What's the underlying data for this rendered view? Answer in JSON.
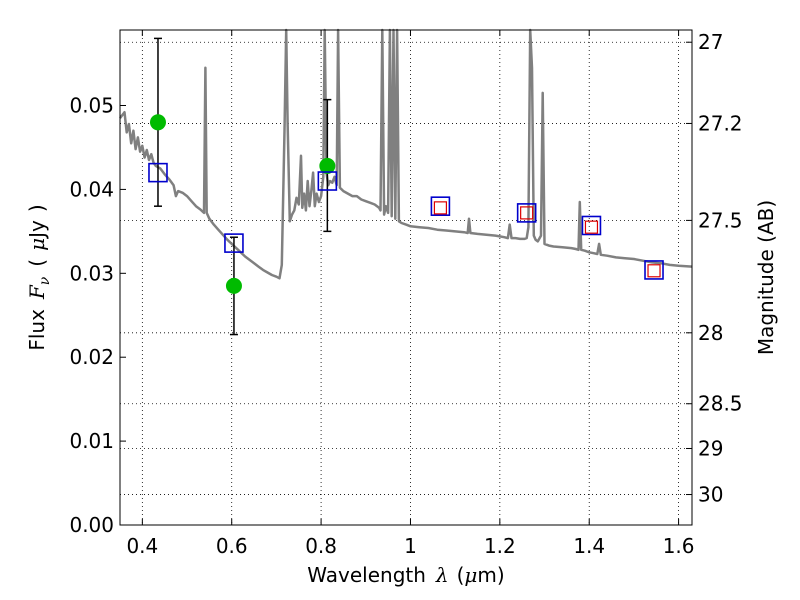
{
  "chart_data": {
    "type": "scatter",
    "title": "",
    "xlabel": "Wavelength  λ (μm)",
    "ylabel": "Flux  F_ν  ( μJy )",
    "ylabel_parts": {
      "prefix": "Flux",
      "symbol": "F",
      "subscript": "ν",
      "open": "(",
      "unit_symbol": "μ",
      "unit": "Jy",
      "close": ")"
    },
    "xlabel_parts": {
      "prefix": "Wavelength",
      "symbol": "λ",
      "unit_open": "(",
      "unit_symbol": "μ",
      "unit": "m",
      "unit_close": ")"
    },
    "y2label": "Magnitude (AB)",
    "xlim": [
      0.35,
      1.63
    ],
    "ylim": [
      0.0,
      0.059
    ],
    "grid": true,
    "x_ticks": [
      0.4,
      0.6,
      0.8,
      1.0,
      1.2,
      1.4,
      1.6
    ],
    "x_tick_labels": [
      "0.4",
      "0.6",
      "0.8",
      "1",
      "1.2",
      "1.4",
      "1.6"
    ],
    "y_ticks": [
      0.0,
      0.01,
      0.02,
      0.03,
      0.04,
      0.05
    ],
    "y_tick_labels": [
      "0.00",
      "0.01",
      "0.02",
      "0.03",
      "0.04",
      "0.05"
    ],
    "y2_ticks": [
      27,
      27.2,
      27.5,
      28,
      28.5,
      29,
      30
    ],
    "y2_tick_labels": [
      "27",
      "27.2",
      "27.5",
      "28",
      "28.5",
      "29",
      "30"
    ],
    "model_spectrum": {
      "color": "#808080",
      "points": [
        [
          0.35,
          0.0485
        ],
        [
          0.36,
          0.0492
        ],
        [
          0.365,
          0.0468
        ],
        [
          0.37,
          0.0478
        ],
        [
          0.375,
          0.0455
        ],
        [
          0.38,
          0.047
        ],
        [
          0.385,
          0.0448
        ],
        [
          0.39,
          0.0462
        ],
        [
          0.395,
          0.0445
        ],
        [
          0.4,
          0.0452
        ],
        [
          0.405,
          0.0438
        ],
        [
          0.41,
          0.0447
        ],
        [
          0.415,
          0.0435
        ],
        [
          0.42,
          0.0442
        ],
        [
          0.425,
          0.0432
        ],
        [
          0.43,
          0.0428
        ],
        [
          0.44,
          0.0425
        ],
        [
          0.45,
          0.0418
        ],
        [
          0.46,
          0.0412
        ],
        [
          0.47,
          0.0405
        ],
        [
          0.475,
          0.0392
        ],
        [
          0.48,
          0.0398
        ],
        [
          0.49,
          0.0396
        ],
        [
          0.5,
          0.0392
        ],
        [
          0.51,
          0.0386
        ],
        [
          0.52,
          0.038
        ],
        [
          0.53,
          0.0376
        ],
        [
          0.538,
          0.0372
        ],
        [
          0.541,
          0.0545
        ],
        [
          0.544,
          0.0372
        ],
        [
          0.55,
          0.0365
        ],
        [
          0.56,
          0.0358
        ],
        [
          0.57,
          0.0352
        ],
        [
          0.58,
          0.0346
        ],
        [
          0.59,
          0.034
        ],
        [
          0.6,
          0.0335
        ],
        [
          0.61,
          0.033
        ],
        [
          0.62,
          0.0325
        ],
        [
          0.63,
          0.032
        ],
        [
          0.64,
          0.0316
        ],
        [
          0.65,
          0.0312
        ],
        [
          0.66,
          0.0308
        ],
        [
          0.67,
          0.0304
        ],
        [
          0.68,
          0.0301
        ],
        [
          0.69,
          0.0298
        ],
        [
          0.7,
          0.0296
        ],
        [
          0.707,
          0.0294
        ],
        [
          0.712,
          0.031
        ],
        [
          0.718,
          0.047
        ],
        [
          0.722,
          0.0595
        ],
        [
          0.725,
          0.048
        ],
        [
          0.73,
          0.0362
        ],
        [
          0.735,
          0.037
        ],
        [
          0.74,
          0.0375
        ],
        [
          0.745,
          0.039
        ],
        [
          0.75,
          0.0382
        ],
        [
          0.755,
          0.044
        ],
        [
          0.758,
          0.0378
        ],
        [
          0.762,
          0.0395
        ],
        [
          0.766,
          0.0375
        ],
        [
          0.77,
          0.041
        ],
        [
          0.774,
          0.038
        ],
        [
          0.778,
          0.0398
        ],
        [
          0.782,
          0.042
        ],
        [
          0.786,
          0.038
        ],
        [
          0.79,
          0.0395
        ],
        [
          0.795,
          0.0385
        ],
        [
          0.8,
          0.0392
        ],
        [
          0.805,
          0.0415
        ],
        [
          0.808,
          0.059
        ],
        [
          0.812,
          0.042
        ],
        [
          0.816,
          0.0405
        ],
        [
          0.82,
          0.041
        ],
        [
          0.825,
          0.0408
        ],
        [
          0.83,
          0.0415
        ],
        [
          0.835,
          0.0405
        ],
        [
          0.838,
          0.059
        ],
        [
          0.842,
          0.0402
        ],
        [
          0.85,
          0.0398
        ],
        [
          0.86,
          0.0395
        ],
        [
          0.87,
          0.0392
        ],
        [
          0.88,
          0.0392
        ],
        [
          0.89,
          0.0388
        ],
        [
          0.9,
          0.0386
        ],
        [
          0.91,
          0.0384
        ],
        [
          0.92,
          0.0382
        ],
        [
          0.93,
          0.0378
        ],
        [
          0.933,
          0.0375
        ],
        [
          0.937,
          0.059
        ],
        [
          0.941,
          0.037
        ],
        [
          0.945,
          0.038
        ],
        [
          0.95,
          0.0372
        ],
        [
          0.954,
          0.059
        ],
        [
          0.958,
          0.0368
        ],
        [
          0.962,
          0.059
        ],
        [
          0.966,
          0.0365
        ],
        [
          0.97,
          0.059
        ],
        [
          0.974,
          0.0362
        ],
        [
          0.98,
          0.036
        ],
        [
          0.99,
          0.0358
        ],
        [
          1.0,
          0.0356
        ],
        [
          1.02,
          0.0355
        ],
        [
          1.04,
          0.0354
        ],
        [
          1.06,
          0.0352
        ],
        [
          1.08,
          0.0351
        ],
        [
          1.1,
          0.035
        ],
        [
          1.12,
          0.0349
        ],
        [
          1.128,
          0.0348
        ],
        [
          1.131,
          0.0365
        ],
        [
          1.134,
          0.0348
        ],
        [
          1.15,
          0.0347
        ],
        [
          1.17,
          0.0346
        ],
        [
          1.19,
          0.0345
        ],
        [
          1.2,
          0.0344
        ],
        [
          1.21,
          0.0343
        ],
        [
          1.218,
          0.0342
        ],
        [
          1.222,
          0.0358
        ],
        [
          1.226,
          0.0342
        ],
        [
          1.235,
          0.0342
        ],
        [
          1.245,
          0.0341
        ],
        [
          1.255,
          0.0341
        ],
        [
          1.26,
          0.0342
        ],
        [
          1.264,
          0.0355
        ],
        [
          1.268,
          0.059
        ],
        [
          1.272,
          0.0545
        ],
        [
          1.276,
          0.0345
        ],
        [
          1.28,
          0.034
        ],
        [
          1.285,
          0.0338
        ],
        [
          1.292,
          0.0345
        ],
        [
          1.296,
          0.0515
        ],
        [
          1.3,
          0.0335
        ],
        [
          1.31,
          0.0333
        ],
        [
          1.32,
          0.0332
        ],
        [
          1.34,
          0.0331
        ],
        [
          1.36,
          0.033
        ],
        [
          1.37,
          0.0329
        ],
        [
          1.376,
          0.0328
        ],
        [
          1.379,
          0.0385
        ],
        [
          1.382,
          0.0328
        ],
        [
          1.39,
          0.0327
        ],
        [
          1.4,
          0.0325
        ],
        [
          1.41,
          0.0324
        ],
        [
          1.418,
          0.0323
        ],
        [
          1.422,
          0.0335
        ],
        [
          1.426,
          0.0322
        ],
        [
          1.44,
          0.0321
        ],
        [
          1.46,
          0.0319
        ],
        [
          1.48,
          0.0318
        ],
        [
          1.5,
          0.0317
        ],
        [
          1.52,
          0.0315
        ],
        [
          1.54,
          0.0313
        ],
        [
          1.56,
          0.0312
        ],
        [
          1.58,
          0.031
        ],
        [
          1.6,
          0.0309
        ],
        [
          1.63,
          0.0308
        ]
      ]
    },
    "observed_points": {
      "color": "#00bb00",
      "points": [
        {
          "x": 0.435,
          "y": 0.048,
          "yerr_low": 0.038,
          "yerr_high": 0.058
        },
        {
          "x": 0.605,
          "y": 0.0285,
          "yerr_low": 0.0227,
          "yerr_high": 0.0343
        },
        {
          "x": 0.814,
          "y": 0.0428,
          "yerr_low": 0.035,
          "yerr_high": 0.0507
        }
      ]
    },
    "model_photometry": {
      "color": "#0000cc",
      "points": [
        [
          0.435,
          0.042
        ],
        [
          0.605,
          0.0336
        ],
        [
          0.814,
          0.041
        ],
        [
          1.067,
          0.038
        ],
        [
          1.26,
          0.0372
        ],
        [
          1.405,
          0.0357
        ],
        [
          1.545,
          0.0304
        ]
      ]
    },
    "upper_limit_points": {
      "color": "#dd0000",
      "points": [
        [
          1.067,
          0.0378
        ],
        [
          1.26,
          0.0372
        ],
        [
          1.405,
          0.0355
        ],
        [
          1.545,
          0.0303
        ]
      ]
    }
  }
}
